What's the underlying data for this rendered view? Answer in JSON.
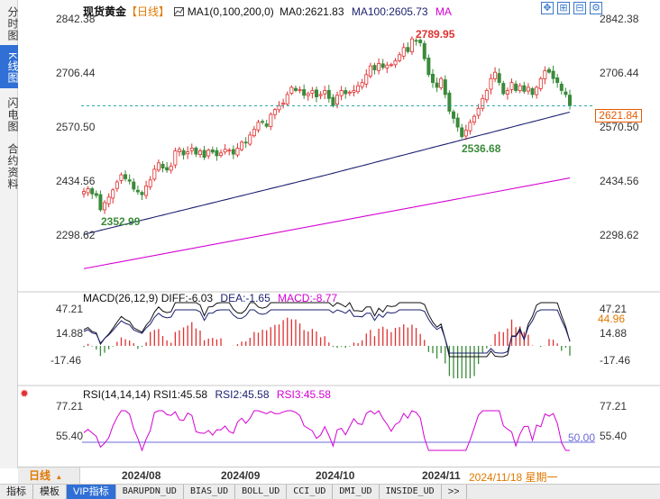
{
  "left_tabs": [
    {
      "label": "分时图",
      "active": false
    },
    {
      "label": "K线图",
      "active": true
    },
    {
      "label": "闪电图",
      "active": false
    },
    {
      "label": "合约资料",
      "active": false
    }
  ],
  "header": {
    "instrument": "现货黄金",
    "period": "【日线】",
    "ma_params": "MA1(0,100,200,0)",
    "ma0": "MA0:2621.83",
    "ma100": "MA100:2605.73",
    "ma_extra": "MA",
    "icons": [
      "crosshair-icon",
      "zoom-in-icon",
      "zoom-out-icon",
      "settings-icon"
    ]
  },
  "price_axis": {
    "ticks": [
      "2842.38",
      "2706.44",
      "2570.50",
      "2434.56",
      "2298.62"
    ],
    "current_price": "2621.84",
    "high_label": "2789.95",
    "low_label_1": "2536.68",
    "low_label_2": "2352.99"
  },
  "macd": {
    "params": "MACD(26,12,9)",
    "diff": "DIFF:-6.03",
    "dea": "DEA:-1.65",
    "macd_val": "MACD:-8.77",
    "ticks": [
      "47.21",
      "14.88",
      "-17.46"
    ],
    "right_value": "44.96"
  },
  "rsi": {
    "params": "RSI(14,14,14)",
    "rsi1": "RSI1:45.58",
    "rsi2": "RSI2:45.58",
    "rsi3": "RSI3:45.58",
    "ticks": [
      "77.21",
      "55.40"
    ],
    "ref_value": "50.00"
  },
  "date_axis": {
    "period_button": "日线",
    "labels": [
      "2024/08",
      "2024/09",
      "2024/10",
      "2024/11"
    ],
    "current_date": "2024/11/18 星期一"
  },
  "bottom_tabs": [
    "指标",
    "模板",
    "VIP指标",
    "BARUPDN_UD",
    "BIAS_UD",
    "BOLL_UD",
    "CCI_UD",
    "DMI_UD",
    "INSIDE_UD",
    ">>"
  ],
  "colors": {
    "up": "#e03030",
    "down": "#3a8a3a",
    "ma100": "#1a1f6e",
    "ma200": "#d400d4",
    "accent": "#2f6fd6",
    "current_price_box": "#e65a00",
    "label_high": "#e03030",
    "label_low": "#3a8a3a"
  },
  "chart_data": {
    "type": "candlestick",
    "title": "现货黄金 日线",
    "y_range": [
      2260,
      2860
    ],
    "x_labels": [
      "2024/08",
      "2024/09",
      "2024/10",
      "2024/11"
    ],
    "close_series": [
      2406,
      2413,
      2400,
      2396,
      2360,
      2378,
      2392,
      2410,
      2430,
      2448,
      2438,
      2432,
      2412,
      2405,
      2398,
      2420,
      2435,
      2462,
      2478,
      2465,
      2460,
      2470,
      2508,
      2512,
      2498,
      2506,
      2515,
      2500,
      2508,
      2492,
      2510,
      2505,
      2496,
      2503,
      2512,
      2510,
      2500,
      2515,
      2530,
      2528,
      2548,
      2562,
      2580,
      2580,
      2570,
      2600,
      2612,
      2622,
      2628,
      2650,
      2668,
      2660,
      2662,
      2648,
      2652,
      2660,
      2644,
      2650,
      2660,
      2640,
      2622,
      2648,
      2660,
      2652,
      2656,
      2660,
      2672,
      2680,
      2700,
      2722,
      2712,
      2728,
      2718,
      2724,
      2725,
      2735,
      2750,
      2768,
      2758,
      2790,
      2784,
      2780,
      2740,
      2700,
      2680,
      2668,
      2690,
      2650,
      2608,
      2590,
      2568,
      2544,
      2560,
      2580,
      2595,
      2615,
      2640,
      2660,
      2690,
      2706,
      2680,
      2652,
      2660,
      2680,
      2660,
      2672,
      2658,
      2668,
      2650,
      2668,
      2690,
      2710,
      2706,
      2690,
      2680,
      2660,
      2650,
      2622
    ],
    "ma100": {
      "start": 2298,
      "mid": 2448,
      "end": 2605.73
    },
    "ma200": {
      "start": 2212,
      "end": 2440
    }
  }
}
